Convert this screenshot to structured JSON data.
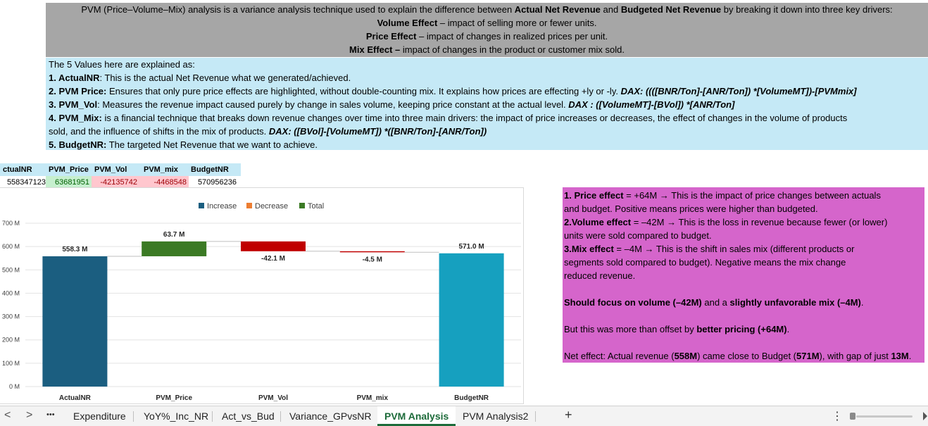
{
  "intro": {
    "line1_pre": "PVM (Price–Volume–Mix) analysis is a variance analysis technique used to explain the difference between ",
    "line1_b1": "Actual Net Revenue",
    "line1_mid": " and ",
    "line1_b2": "Budgeted Net Revenue",
    "line1_post": " by breaking it down into three key drivers:",
    "line2_b": "Volume Effect",
    "line2": " – impact of selling more or fewer units.",
    "line3_b": "Price Effect",
    "line3": " – impact of changes in realized prices per unit.",
    "line4_b": "Mix Effect –",
    "line4": " impact of changes in the product or customer mix sold."
  },
  "explain": {
    "heading": "The 5 Values here are explained as:",
    "i1_b": "1. ActualNR",
    "i1": ": This is the actual Net Revenue what we generated/achieved.",
    "i2_b": "2. PVM Price:",
    "i2": " Ensures that only pure price effects are highlighted, without double-counting mix. It explains how prices are effecting +ly or -ly. ",
    "i2_dax": "DAX: ((([BNR/Ton]-[ANR/Ton]) *[VolumeMT])-[PVMmix]",
    "i3_b": "3. PVM_Vol",
    "i3": ": Measures the revenue impact caused purely by change in sales volume, keeping price constant at the actual level. ",
    "i3_dax": "DAX : ([VolumeMT]-[BVol]) *[ANR/Ton]",
    "i4_b": "4. PVM_Mix:",
    "i4a": " is a financial technique that breaks down revenue changes over time into three main drivers: the impact of price increases or decreases, the effect of changes in the volume of products",
    "i4b": "sold, and the influence of shifts in the mix of products. ",
    "i4_dax": "DAX: ([BVol]-[VolumeMT]) *([BNR/Ton]-[ANR/Ton])",
    "i5_b": "5. BudgetNR:",
    "i5": " The targeted Net Revenue that we want to achieve."
  },
  "table": {
    "headers": [
      "ctualNR",
      "PVM_Price",
      "PVM_Vol",
      "PVM_mix",
      "BudgetNR"
    ],
    "values": [
      "558347123",
      "63681951",
      "-42135742",
      "-4468548",
      "570956236"
    ]
  },
  "chart_data": {
    "type": "bar",
    "subtype": "waterfall",
    "categories": [
      "ActualNR",
      "PVM_Price",
      "PVM_Vol",
      "PVM_mix",
      "BudgetNR"
    ],
    "values": [
      558.3,
      63.7,
      -42.1,
      -4.5,
      571.0
    ],
    "kinds": [
      "total",
      "increase",
      "decrease",
      "decrease",
      "total"
    ],
    "data_labels": [
      "558.3 M",
      "63.7 M",
      "-42.1 M",
      "-4.5 M",
      "571.0 M"
    ],
    "legend": [
      "Increase",
      "Decrease",
      "Total"
    ],
    "legend_position": "top",
    "y_ticks": [
      "0 M",
      "100 M",
      "200 M",
      "300 M",
      "400 M",
      "500 M",
      "600 M",
      "700 M"
    ],
    "y_tick_values": [
      0,
      100,
      200,
      300,
      400,
      500,
      600,
      700
    ],
    "ylim": [
      0,
      700
    ],
    "grid": true,
    "colors": {
      "ActualNR": "#1b5e80",
      "BudgetNR": "#16a0bf",
      "increase": "#3b7a24",
      "decrease": "#c00000",
      "legend_increase": "#1b5e80",
      "legend_decrease": "#ed7d31",
      "legend_total": "#3b7a24"
    }
  },
  "note": {
    "p1_b": "1. Price effect",
    "p1a": " = +64M → This is the impact of price changes between actuals",
    "p1b": " and budget. Positive means prices were higher than budgeted.",
    "p2_b": "2.Volume effect",
    "p2a": " = –42M → This is the loss in revenue because fewer (or lower)",
    "p2b": " units were sold compared to budget.",
    "p3_b": "3.Mix effect",
    "p3a": " = –4M → This is the shift in sales mix (different products or",
    "p3b": " segments sold compared to budget). Negative means the mix change",
    "p3c": "reduced revenue.",
    "f_b1": "Should focus on volume (–42M)",
    "f_mid": " and a ",
    "f_b2": "slightly unfavorable mix (–4M)",
    "f_end": ".",
    "o_pre": "But this was more than offset by ",
    "o_b": "better pricing (+64M)",
    "o_end": ".",
    "n_pre": "Net effect: Actual revenue (",
    "n_b1": "558M",
    "n_mid1": ") came close to Budget (",
    "n_b2": "571M",
    "n_mid2": "), with gap of just ",
    "n_b3": "13M",
    "n_end": "."
  },
  "tabbar": {
    "prev": "<",
    "next": ">",
    "more": "•••",
    "tabs": [
      "Expenditure",
      "YoY%_Inc_NR",
      "Act_vs_Bud",
      "Variance_GPvsNR",
      "PVM Analysis",
      "PVM Analysis2"
    ],
    "active": "PVM Analysis",
    "add": "+",
    "menu": "⋮"
  }
}
